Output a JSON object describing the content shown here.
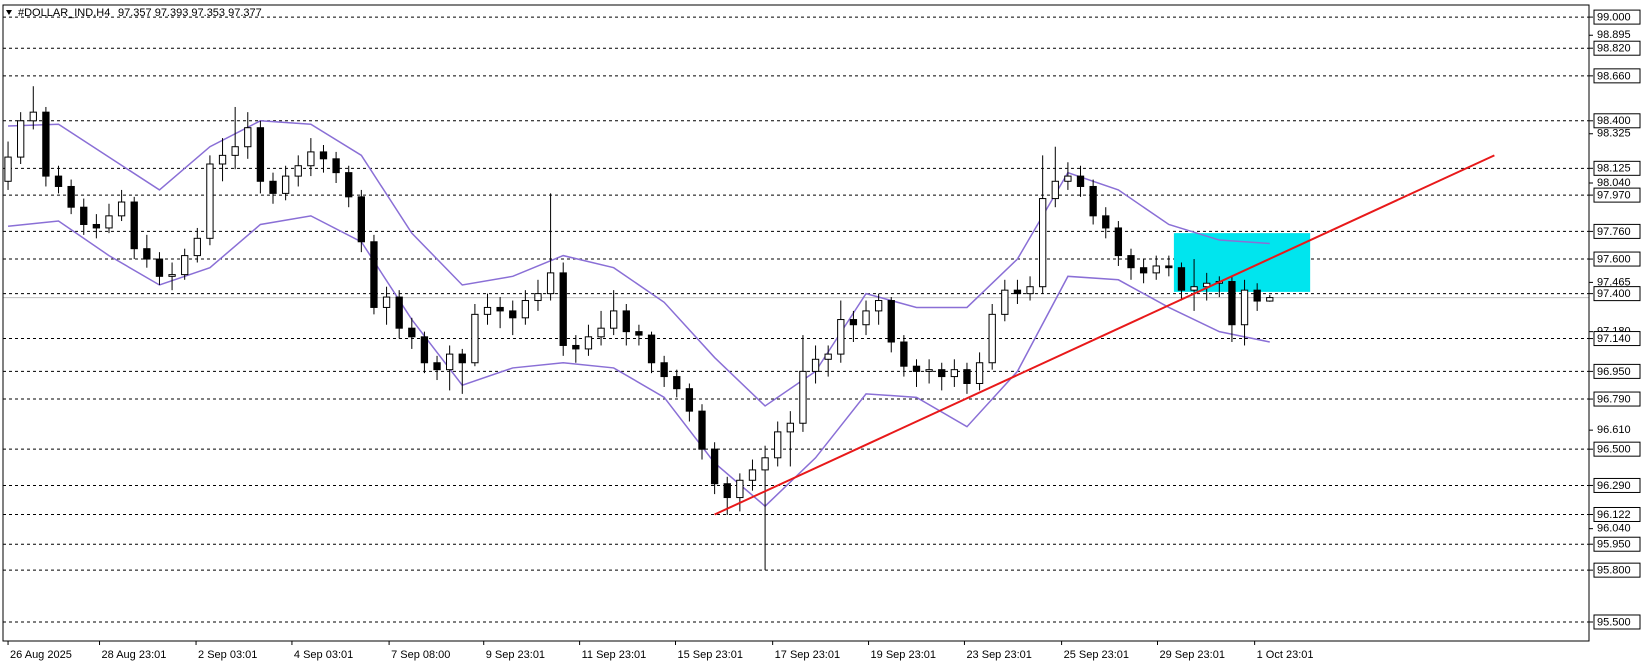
{
  "chart_data": {
    "type": "candlestick",
    "title": "#DOLLAR_IND,H4",
    "header_prices": "97.357 97.393 97.353 97.377",
    "xlim": [
      -0.4,
      125.3
    ],
    "ylim": [
      95.39,
      99.07
    ],
    "up_fill": "#ffffff",
    "down_fill": "#000000",
    "wick_color": "#000000",
    "candles": [
      [
        98.05,
        98.28,
        98.0,
        98.19
      ],
      [
        98.19,
        98.45,
        98.15,
        98.4
      ],
      [
        98.4,
        98.6,
        98.35,
        98.45
      ],
      [
        98.45,
        98.48,
        98.02,
        98.08
      ],
      [
        98.08,
        98.14,
        97.98,
        98.02
      ],
      [
        98.02,
        98.06,
        97.86,
        97.9
      ],
      [
        97.9,
        97.95,
        97.74,
        97.8
      ],
      [
        97.8,
        97.86,
        97.72,
        97.78
      ],
      [
        97.78,
        97.92,
        97.75,
        97.85
      ],
      [
        97.85,
        98.0,
        97.82,
        97.93
      ],
      [
        97.93,
        97.96,
        97.6,
        97.66
      ],
      [
        97.66,
        97.74,
        97.55,
        97.6
      ],
      [
        97.6,
        97.64,
        97.45,
        97.5
      ],
      [
        97.5,
        97.58,
        97.42,
        97.51
      ],
      [
        97.51,
        97.66,
        97.48,
        97.62
      ],
      [
        97.62,
        97.78,
        97.58,
        97.72
      ],
      [
        97.72,
        98.2,
        97.68,
        98.15
      ],
      [
        98.15,
        98.3,
        98.05,
        98.2
      ],
      [
        98.2,
        98.48,
        98.12,
        98.25
      ],
      [
        98.25,
        98.45,
        98.18,
        98.36
      ],
      [
        98.36,
        98.4,
        97.98,
        98.05
      ],
      [
        98.05,
        98.1,
        97.92,
        97.98
      ],
      [
        97.98,
        98.14,
        97.94,
        98.08
      ],
      [
        98.08,
        98.2,
        98.02,
        98.14
      ],
      [
        98.14,
        98.3,
        98.08,
        98.22
      ],
      [
        98.22,
        98.26,
        98.1,
        98.18
      ],
      [
        98.18,
        98.22,
        98.04,
        98.1
      ],
      [
        98.1,
        98.14,
        97.9,
        97.96
      ],
      [
        97.96,
        98.0,
        97.64,
        97.7
      ],
      [
        97.7,
        97.74,
        97.28,
        97.32
      ],
      [
        97.32,
        97.44,
        97.22,
        97.38
      ],
      [
        97.38,
        97.42,
        97.14,
        97.2
      ],
      [
        97.2,
        97.26,
        97.08,
        97.15
      ],
      [
        97.15,
        97.18,
        96.94,
        97.0
      ],
      [
        97.0,
        97.04,
        96.9,
        96.96
      ],
      [
        96.96,
        97.1,
        96.84,
        97.05
      ],
      [
        97.05,
        97.08,
        96.82,
        97.0
      ],
      [
        97.0,
        97.34,
        96.98,
        97.28
      ],
      [
        97.28,
        97.4,
        97.22,
        97.32
      ],
      [
        97.32,
        97.38,
        97.2,
        97.3
      ],
      [
        97.3,
        97.36,
        97.16,
        97.26
      ],
      [
        97.26,
        97.42,
        97.22,
        97.36
      ],
      [
        97.36,
        97.48,
        97.3,
        97.4
      ],
      [
        97.4,
        97.98,
        97.36,
        97.52
      ],
      [
        97.52,
        97.58,
        97.04,
        97.1
      ],
      [
        97.1,
        97.16,
        97.0,
        97.08
      ],
      [
        97.08,
        97.22,
        97.04,
        97.15
      ],
      [
        97.15,
        97.3,
        97.1,
        97.2
      ],
      [
        97.2,
        97.42,
        97.16,
        97.3
      ],
      [
        97.3,
        97.34,
        97.1,
        97.18
      ],
      [
        97.18,
        97.22,
        97.1,
        97.16
      ],
      [
        97.16,
        97.18,
        96.94,
        97.0
      ],
      [
        97.0,
        97.04,
        96.86,
        96.92
      ],
      [
        96.92,
        96.96,
        96.8,
        96.85
      ],
      [
        96.85,
        96.88,
        96.66,
        96.72
      ],
      [
        96.72,
        96.76,
        96.44,
        96.5
      ],
      [
        96.5,
        96.54,
        96.24,
        96.3
      ],
      [
        96.3,
        96.34,
        96.12,
        96.22
      ],
      [
        96.22,
        96.36,
        96.14,
        96.32
      ],
      [
        96.32,
        96.44,
        96.26,
        96.38
      ],
      [
        96.38,
        96.52,
        95.8,
        96.45
      ],
      [
        96.45,
        96.66,
        96.4,
        96.6
      ],
      [
        96.6,
        96.72,
        96.4,
        96.65
      ],
      [
        96.65,
        97.16,
        96.6,
        96.95
      ],
      [
        96.95,
        97.1,
        96.88,
        97.02
      ],
      [
        97.02,
        97.1,
        96.92,
        97.05
      ],
      [
        97.05,
        97.36,
        97.0,
        97.25
      ],
      [
        97.25,
        97.3,
        97.12,
        97.22
      ],
      [
        97.22,
        97.36,
        97.16,
        97.3
      ],
      [
        97.3,
        97.4,
        97.22,
        97.36
      ],
      [
        97.36,
        97.38,
        97.06,
        97.12
      ],
      [
        97.12,
        97.16,
        96.92,
        96.98
      ],
      [
        96.98,
        97.02,
        96.86,
        96.95
      ],
      [
        96.95,
        97.02,
        96.88,
        96.96
      ],
      [
        96.96,
        97.0,
        96.84,
        96.92
      ],
      [
        96.92,
        97.02,
        96.86,
        96.96
      ],
      [
        96.96,
        97.0,
        96.82,
        96.88
      ],
      [
        96.88,
        97.06,
        96.84,
        97.0
      ],
      [
        97.0,
        97.34,
        96.96,
        97.28
      ],
      [
        97.28,
        97.48,
        97.24,
        97.42
      ],
      [
        97.42,
        97.48,
        97.34,
        97.4
      ],
      [
        97.4,
        97.5,
        97.36,
        97.44
      ],
      [
        97.44,
        98.2,
        97.4,
        97.95
      ],
      [
        97.95,
        98.25,
        97.9,
        98.05
      ],
      [
        98.05,
        98.16,
        98.0,
        98.08
      ],
      [
        98.08,
        98.14,
        97.96,
        98.02
      ],
      [
        98.02,
        98.06,
        97.8,
        97.85
      ],
      [
        97.85,
        97.9,
        97.72,
        97.78
      ],
      [
        97.78,
        97.82,
        97.56,
        97.62
      ],
      [
        97.62,
        97.66,
        97.48,
        97.55
      ],
      [
        97.55,
        97.6,
        97.46,
        97.52
      ],
      [
        97.52,
        97.62,
        97.48,
        97.56
      ],
      [
        97.56,
        97.62,
        97.5,
        97.55
      ],
      [
        97.55,
        97.58,
        97.36,
        97.42
      ],
      [
        97.42,
        97.6,
        97.3,
        97.44
      ],
      [
        97.44,
        97.52,
        97.36,
        97.46
      ],
      [
        97.46,
        97.5,
        97.38,
        97.47
      ],
      [
        97.47,
        97.5,
        97.12,
        97.22
      ],
      [
        97.22,
        97.48,
        97.1,
        97.42
      ],
      [
        97.42,
        97.46,
        97.3,
        97.357
      ],
      [
        97.357,
        97.393,
        97.353,
        97.377
      ]
    ],
    "bands": {
      "color": "#8a6fd6",
      "x": [
        0,
        4,
        8,
        12,
        16,
        20,
        24,
        28,
        32,
        36,
        40,
        44,
        48,
        52,
        56,
        60,
        64,
        68,
        72,
        76,
        80,
        84,
        88,
        92,
        96,
        100
      ],
      "upper": [
        98.37,
        98.38,
        98.19,
        98.0,
        98.25,
        98.4,
        98.38,
        98.2,
        97.75,
        97.45,
        97.5,
        97.62,
        97.55,
        97.35,
        97.03,
        96.75,
        96.95,
        97.4,
        97.32,
        97.32,
        97.6,
        98.1,
        98.0,
        97.8,
        97.71,
        97.69
      ],
      "lower": [
        97.79,
        97.82,
        97.62,
        97.45,
        97.55,
        97.8,
        97.85,
        97.7,
        97.25,
        96.87,
        96.97,
        97.0,
        96.97,
        96.8,
        96.42,
        96.17,
        96.45,
        96.82,
        96.8,
        96.63,
        96.95,
        97.5,
        97.48,
        97.32,
        97.18,
        97.12
      ]
    },
    "trendline": {
      "from": [
        56,
        96.122
      ],
      "to": [
        117.8,
        98.2
      ],
      "color": "#e8191a"
    },
    "zone": {
      "x": [
        92.4,
        103.2
      ],
      "y": [
        97.41,
        97.75
      ],
      "color": "#00e5ee"
    },
    "bid": {
      "value": 97.377,
      "color": "#c0c0c0"
    },
    "yticks": [
      {
        "value": 99.0,
        "label": "99.000"
      },
      {
        "value": 98.82,
        "label": "98.820"
      },
      {
        "value": 98.66,
        "label": "98.660"
      },
      {
        "value": 98.4,
        "label": "98.400"
      },
      {
        "value": 98.125,
        "label": "98.125"
      },
      {
        "value": 97.97,
        "label": "97.970"
      },
      {
        "value": 97.76,
        "label": "97.760"
      },
      {
        "value": 97.6,
        "label": "97.600"
      },
      {
        "value": 97.4,
        "label": "97.400"
      },
      {
        "value": 97.14,
        "label": "97.140"
      },
      {
        "value": 96.95,
        "label": "96.950"
      },
      {
        "value": 96.79,
        "label": "96.790"
      },
      {
        "value": 96.5,
        "label": "96.500"
      },
      {
        "value": 96.29,
        "label": "96.290"
      },
      {
        "value": 96.122,
        "label": "96.122"
      },
      {
        "value": 95.95,
        "label": "95.950"
      },
      {
        "value": 95.8,
        "label": "95.800"
      },
      {
        "value": 95.5,
        "label": "95.500"
      }
    ],
    "yticks_minor": [
      {
        "value": 98.895,
        "label": "98.895"
      },
      {
        "value": 98.325,
        "label": "98.325"
      },
      {
        "value": 98.04,
        "label": "98.040"
      },
      {
        "value": 97.465,
        "label": "97.465"
      },
      {
        "value": 97.18,
        "label": "97.180"
      },
      {
        "value": 96.61,
        "label": "96.610"
      },
      {
        "value": 96.04,
        "label": "96.040"
      }
    ],
    "xticks": [
      {
        "value": 0,
        "label": "26 Aug 2025"
      },
      {
        "value": 7.25,
        "label": "28 Aug 23:01"
      },
      {
        "value": 14.9,
        "label": "2 Sep 03:01"
      },
      {
        "value": 22.5,
        "label": "4 Sep 03:01"
      },
      {
        "value": 30.2,
        "label": "7 Sep 08:00"
      },
      {
        "value": 37.7,
        "label": "9 Sep 23:01"
      },
      {
        "value": 45.3,
        "label": "11 Sep 23:01"
      },
      {
        "value": 52.9,
        "label": "15 Sep 23:01"
      },
      {
        "value": 60.6,
        "label": "17 Sep 23:01"
      },
      {
        "value": 68.2,
        "label": "19 Sep 23:01"
      },
      {
        "value": 75.8,
        "label": "23 Sep 23:01"
      },
      {
        "value": 83.5,
        "label": "25 Sep 23:01"
      },
      {
        "value": 91.1,
        "label": "29 Sep 23:01"
      },
      {
        "value": 98.8,
        "label": "1 Oct 23:01"
      }
    ]
  }
}
